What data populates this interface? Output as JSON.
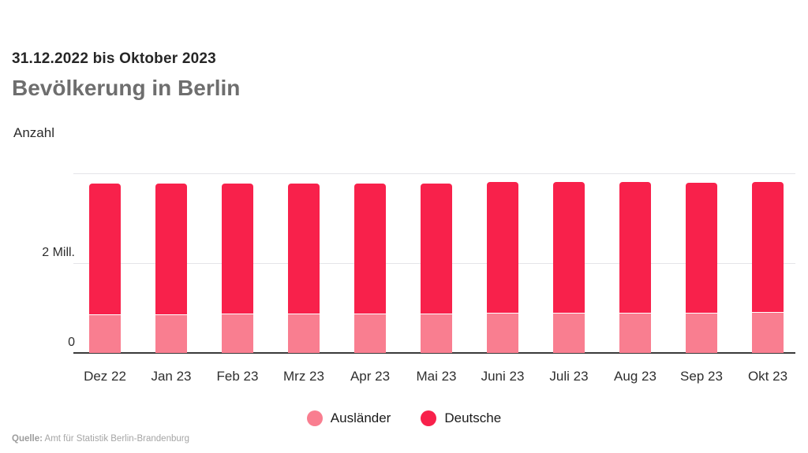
{
  "page": {
    "subtitle": "31.12.2022 bis Oktober 2023",
    "title": "Bevölkerung in Berlin",
    "axis_title": "Anzahl"
  },
  "footer": {
    "source_label": "Quelle:",
    "source_text": "Amt für Statistik Berlin-Brandenburg"
  },
  "colors": {
    "auslaender": "#F97E90",
    "deutsche": "#F8214B",
    "gridline": "#E4E4E8",
    "axis_line": "#3A3A3A",
    "title_gray": "#6E6E6E",
    "text_dark": "#262626",
    "source_gray": "#A5A5A5"
  },
  "chart_data": {
    "type": "bar",
    "stacked": true,
    "title": "Bevölkerung in Berlin",
    "subtitle": "31.12.2022 bis Oktober 2023",
    "xlabel": "",
    "ylabel": "Anzahl",
    "unit": "Millionen Personen",
    "categories": [
      "Dez 22",
      "Jan 23",
      "Feb 23",
      "Mrz 23",
      "Apr 23",
      "Mai 23",
      "Juni 23",
      "Juli 23",
      "Aug 23",
      "Sep 23",
      "Okt 23"
    ],
    "series": [
      {
        "name": "Ausländer",
        "color": "#F97E90",
        "values_mill": [
          0.85,
          0.85,
          0.86,
          0.86,
          0.86,
          0.86,
          0.87,
          0.87,
          0.87,
          0.88,
          0.89
        ]
      },
      {
        "name": "Deutsche",
        "color": "#F8214B",
        "values_mill": [
          2.91,
          2.91,
          2.9,
          2.9,
          2.9,
          2.9,
          2.91,
          2.91,
          2.91,
          2.9,
          2.89
        ]
      }
    ],
    "totals_mill": [
      3.76,
      3.76,
      3.76,
      3.76,
      3.76,
      3.76,
      3.78,
      3.78,
      3.78,
      3.78,
      3.78
    ],
    "ylim": [
      0,
      4.26
    ],
    "yticks": [
      {
        "value": 0,
        "label": "0"
      },
      {
        "value": 2,
        "label": "2 Mill."
      },
      {
        "value": 4,
        "label": ""
      }
    ],
    "grid": true,
    "legend": [
      "Ausländer",
      "Deutsche"
    ],
    "legend_position": "bottom",
    "source": "Quelle: Amt für Statistik Berlin-Brandenburg"
  }
}
